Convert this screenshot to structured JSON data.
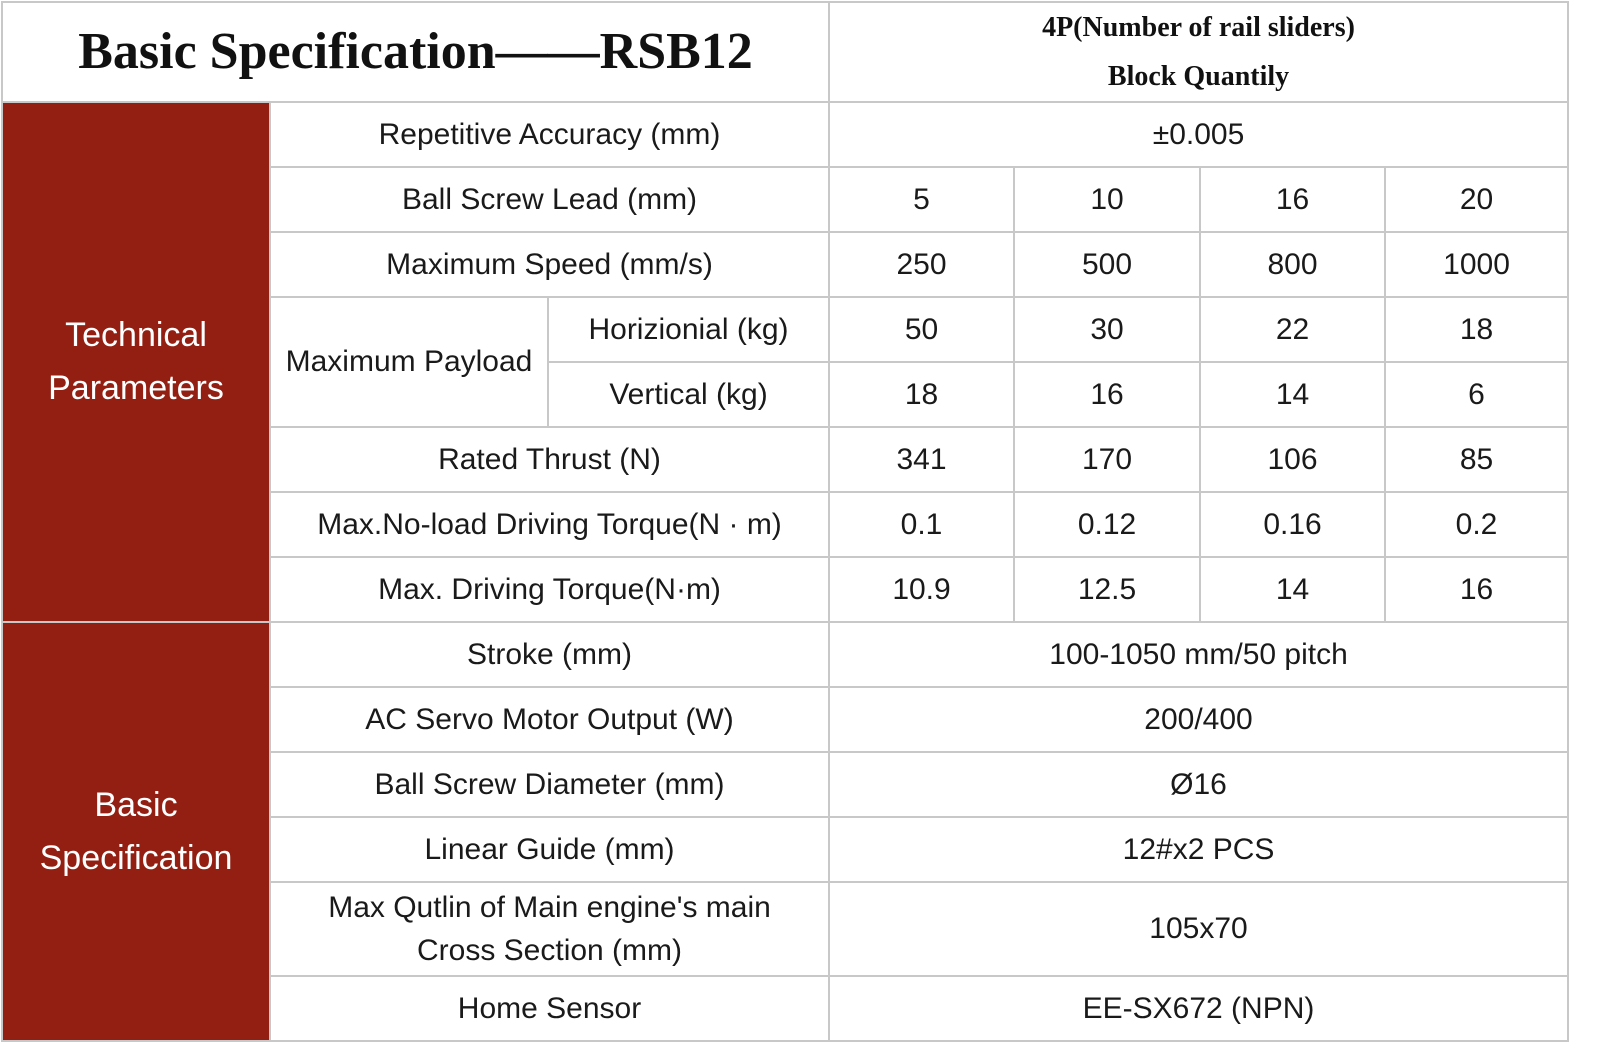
{
  "title": "Basic Specification——RSB12",
  "header": {
    "line1": "4P(Number of rail sliders)",
    "line2": "Block Quantily"
  },
  "groups": {
    "technical": [
      "Technical",
      "Parameters"
    ],
    "basic": [
      "Basic",
      "Specification"
    ]
  },
  "rows": {
    "repetitive_accuracy": {
      "label": "Repetitive Accuracy (mm)",
      "value": "±0.005"
    },
    "ball_screw_lead": {
      "label": "Ball Screw Lead (mm)",
      "values": [
        "5",
        "10",
        "16",
        "20"
      ]
    },
    "maximum_speed": {
      "label": "Maximum Speed  (mm/s)",
      "values": [
        "250",
        "500",
        "800",
        "1000"
      ]
    },
    "maximum_payload": {
      "label": "Maximum Payload",
      "horizontal": {
        "label": "Horizionial (kg)",
        "values": [
          "50",
          "30",
          "22",
          "18"
        ]
      },
      "vertical": {
        "label": "Vertical (kg)",
        "values": [
          "18",
          "16",
          "14",
          "6"
        ]
      }
    },
    "rated_thrust": {
      "label": "Rated Thrust (N)",
      "values": [
        "341",
        "170",
        "106",
        "85"
      ]
    },
    "no_load_torque": {
      "label": "Max.No-load Driving Torque(N · m)",
      "values": [
        "0.1",
        "0.12",
        "0.16",
        "0.2"
      ]
    },
    "driving_torque": {
      "label": "Max. Driving Torque(N·m)",
      "values": [
        "10.9",
        "12.5",
        "14",
        "16"
      ]
    },
    "stroke": {
      "label": "Stroke (mm)",
      "value": "100-1050 mm/50 pitch"
    },
    "servo_motor": {
      "label": "AC Servo Motor Output (W)",
      "value": "200/400"
    },
    "ball_screw_diameter": {
      "label": "Ball Screw Diameter (mm)",
      "value": "Ø16"
    },
    "linear_guide": {
      "label": "Linear Guide (mm)",
      "value": "12#x2 PCS"
    },
    "cross_section": {
      "label_line1": "Max Qutlin of Main engine's main",
      "label_line2": "Cross Section (mm)",
      "value": "105x70"
    },
    "home_sensor": {
      "label": "Home Sensor",
      "value": "EE-SX672 (NPN)"
    }
  }
}
